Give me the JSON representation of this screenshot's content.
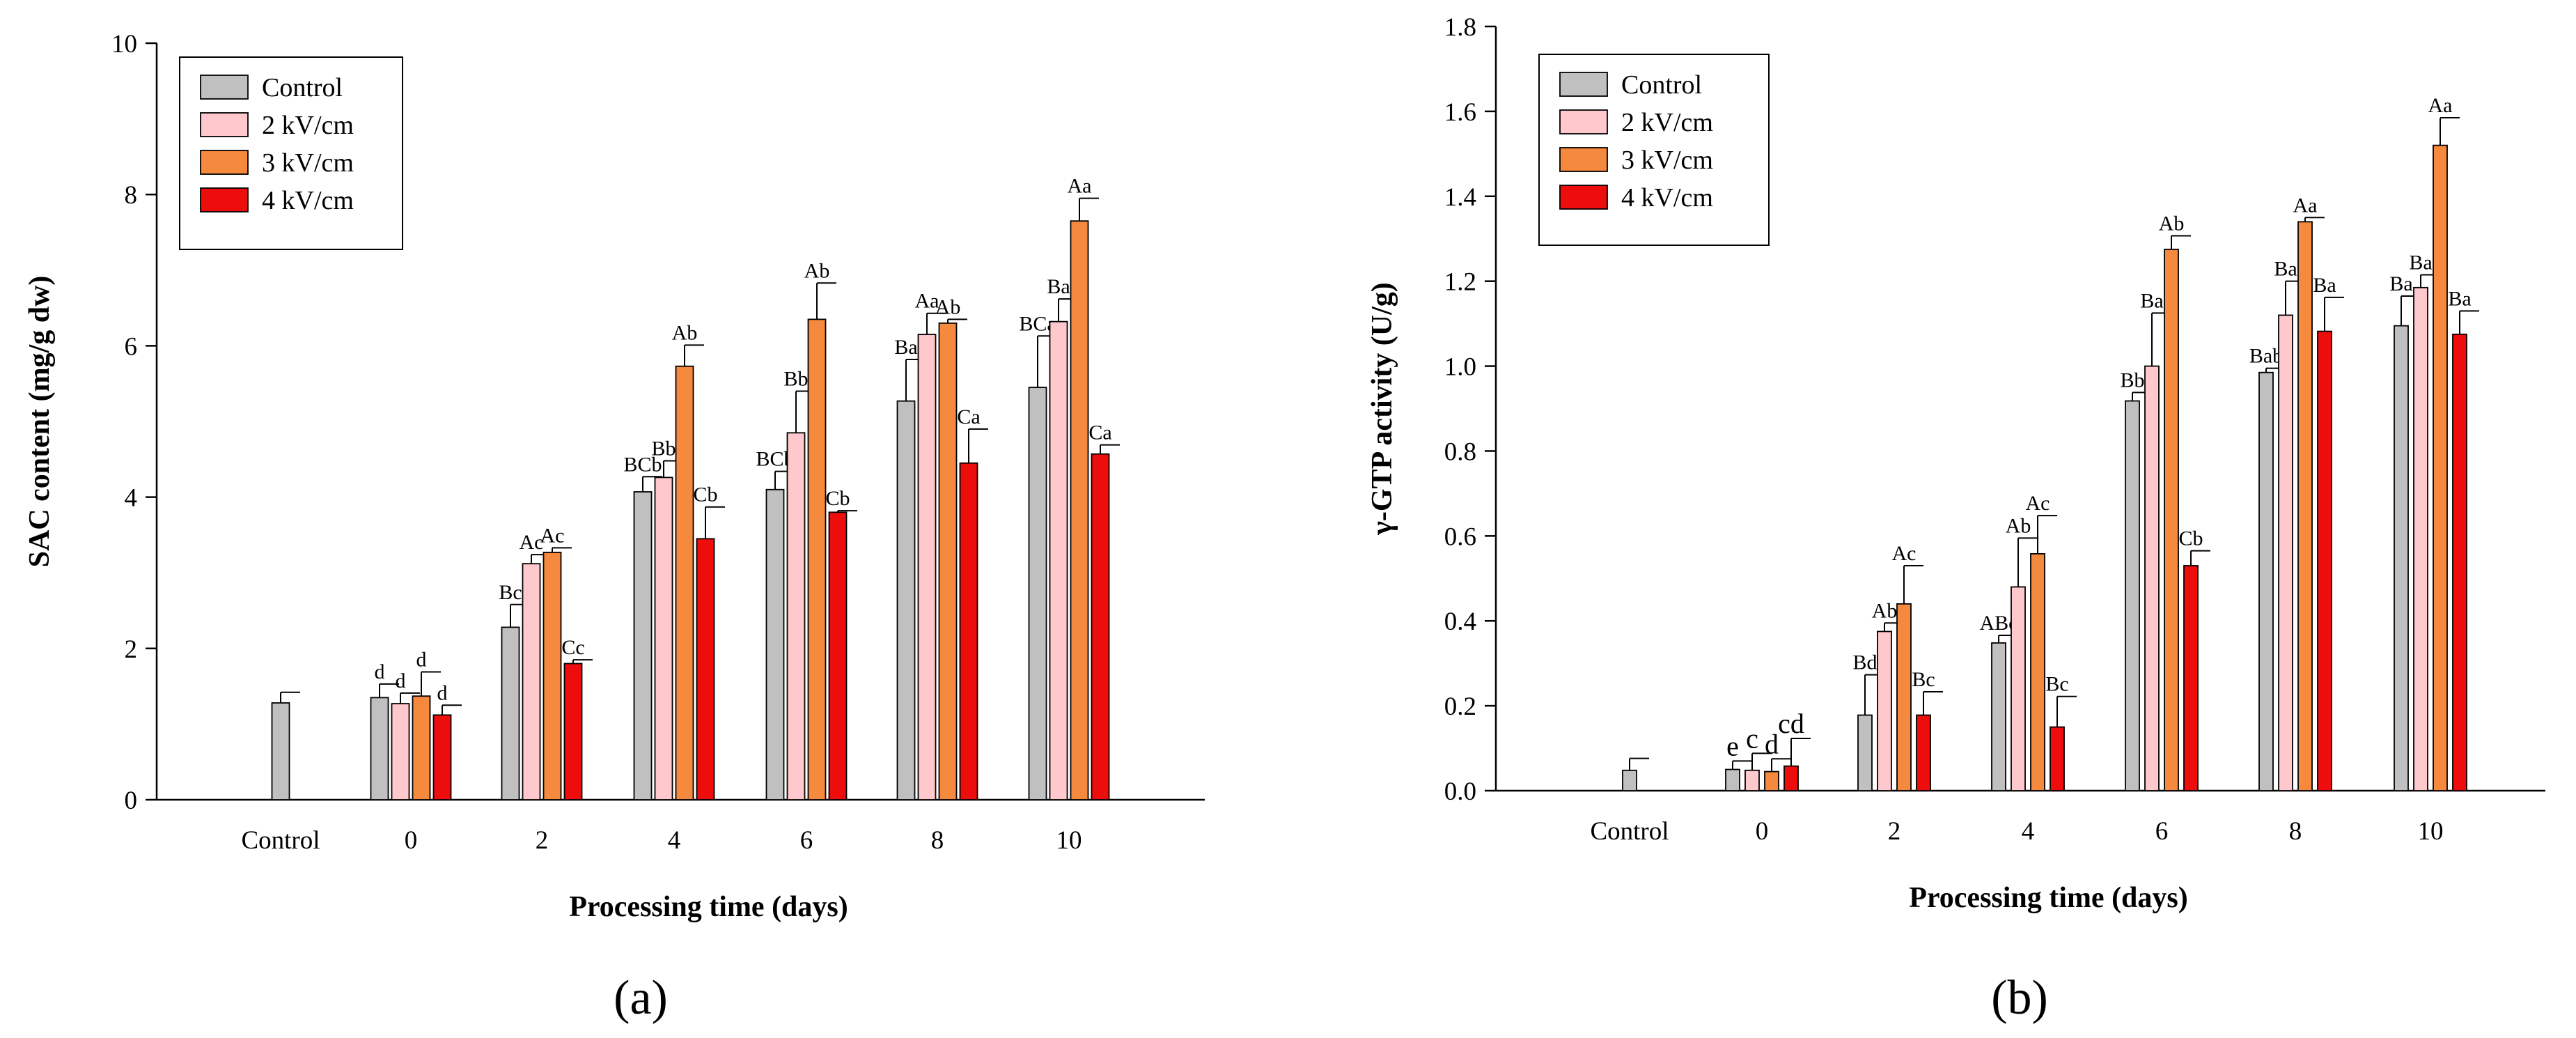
{
  "colors": {
    "Control": "#c0c0c0",
    "2 kV/cm": "#ffc8cc",
    "3 kV/cm": "#f5893d",
    "4 kV/cm": "#ee0d0d",
    "axis": "#000000"
  },
  "chart_data": [
    {
      "type": "bar",
      "panel_label": "(a)",
      "ylabel": "SAC content (mg/g dw)",
      "xlabel": "Processing time (days)",
      "ylim": [
        0,
        10
      ],
      "yticks": [
        "0",
        "2",
        "4",
        "6",
        "8",
        "10"
      ],
      "categories": [
        "Control",
        "0",
        "2",
        "4",
        "6",
        "8",
        "10"
      ],
      "legend_position": "top-left",
      "series": [
        {
          "name": "Control",
          "values": [
            1.28,
            1.35,
            2.28,
            4.07,
            4.1,
            5.27,
            5.45
          ],
          "errors": [
            0.14,
            0.18,
            0.3,
            0.2,
            0.24,
            0.55,
            0.68
          ],
          "labels": [
            "",
            "d",
            "Bc",
            "BCb",
            "BCb",
            "Ba",
            "BCa"
          ]
        },
        {
          "name": "2 kV/cm",
          "values": [
            null,
            1.27,
            3.12,
            4.26,
            4.85,
            6.15,
            6.32
          ],
          "errors": [
            null,
            0.14,
            0.12,
            0.22,
            0.55,
            0.28,
            0.3
          ],
          "labels": [
            "",
            "d",
            "Ac",
            "Bb",
            "Bb",
            "Aa",
            "Ba"
          ]
        },
        {
          "name": "3 kV/cm",
          "values": [
            null,
            1.37,
            3.27,
            5.73,
            6.35,
            6.3,
            7.65
          ],
          "errors": [
            null,
            0.32,
            0.06,
            0.28,
            0.48,
            0.05,
            0.3
          ],
          "labels": [
            "",
            "d",
            "Ac",
            "Ab",
            "Ab",
            "Ab",
            "Aa"
          ]
        },
        {
          "name": "4 kV/cm",
          "values": [
            null,
            1.12,
            1.8,
            3.45,
            3.8,
            4.45,
            4.57
          ],
          "errors": [
            null,
            0.13,
            0.05,
            0.42,
            0.02,
            0.45,
            0.12
          ],
          "labels": [
            "",
            "d",
            "Cc",
            "Cb",
            "Cb",
            "Ca",
            "Ca"
          ]
        }
      ]
    },
    {
      "type": "bar",
      "panel_label": "(b)",
      "ylabel": "γ-GTP activity (U/g)",
      "xlabel": "Processing time (days)",
      "ylim": [
        0,
        1.8
      ],
      "yticks": [
        "0.0",
        "0.2",
        "0.4",
        "0.6",
        "0.8",
        "1.0",
        "1.2",
        "1.4",
        "1.6",
        "1.8"
      ],
      "categories": [
        "Control",
        "0",
        "2",
        "4",
        "6",
        "8",
        "10"
      ],
      "legend_position": "top-left",
      "series": [
        {
          "name": "Control",
          "values": [
            0.048,
            0.05,
            0.178,
            0.348,
            0.918,
            0.985,
            1.095
          ],
          "errors": [
            0.028,
            0.02,
            0.095,
            0.018,
            0.02,
            0.01,
            0.07
          ],
          "labels": [
            "",
            "e",
            "Bd",
            "ABc",
            "Bb",
            "Bab",
            "Ba"
          ]
        },
        {
          "name": "2 kV/cm",
          "values": [
            null,
            0.048,
            0.375,
            0.48,
            1.0,
            1.12,
            1.185
          ],
          "errors": [
            null,
            0.04,
            0.02,
            0.115,
            0.125,
            0.08,
            0.03
          ],
          "labels": [
            "",
            "c",
            "Ab",
            "Ab",
            "Ba",
            "Ba",
            "Ba"
          ]
        },
        {
          "name": "3 kV/cm",
          "values": [
            null,
            0.045,
            0.44,
            0.558,
            1.275,
            1.34,
            1.52
          ],
          "errors": [
            null,
            0.03,
            0.09,
            0.09,
            0.032,
            0.01,
            0.065
          ],
          "labels": [
            "",
            "d",
            "Ac",
            "Ac",
            "Ab",
            "Aa",
            "Aa"
          ]
        },
        {
          "name": "4 kV/cm",
          "values": [
            null,
            0.058,
            0.178,
            0.15,
            0.53,
            1.082,
            1.075
          ],
          "errors": [
            null,
            0.065,
            0.055,
            0.072,
            0.035,
            0.08,
            0.055
          ],
          "labels": [
            "",
            "cd",
            "Bc",
            "Bc",
            "Cb",
            "Ba",
            "Ba"
          ]
        }
      ]
    }
  ]
}
